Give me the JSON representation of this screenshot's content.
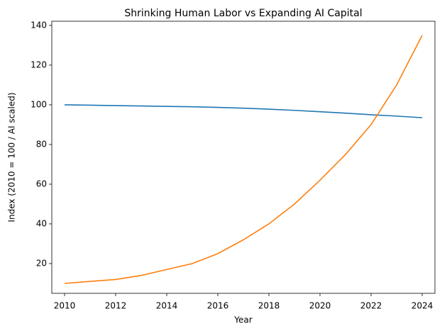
{
  "chart_data": {
    "type": "line",
    "title": "Shrinking Human Labor vs Expanding AI Capital",
    "x_label": "Year",
    "y_label": "Index (2010 = 100 / AI scaled)",
    "x": [
      2010,
      2011,
      2012,
      2013,
      2014,
      2015,
      2016,
      2017,
      2018,
      2019,
      2020,
      2021,
      2022,
      2023,
      2024
    ],
    "series": [
      {
        "color": "#1f77b4",
        "values": [
          100,
          99.8,
          99.6,
          99.4,
          99.2,
          99.0,
          98.7,
          98.3,
          97.8,
          97.2,
          96.5,
          95.8,
          95.0,
          94.3,
          93.5
        ]
      },
      {
        "color": "#ff7f0e",
        "values": [
          10,
          11,
          12,
          14,
          17,
          20,
          25,
          32,
          40,
          50,
          62,
          75,
          90,
          110,
          135
        ]
      }
    ],
    "xlim": [
      2009.5,
      2024.5
    ],
    "xticks": [
      2010,
      2012,
      2014,
      2016,
      2018,
      2020,
      2022,
      2024
    ],
    "ylim": [
      5,
      142.1
    ],
    "yticks": [
      20,
      40,
      60,
      80,
      100,
      120,
      140
    ],
    "grid": false
  }
}
